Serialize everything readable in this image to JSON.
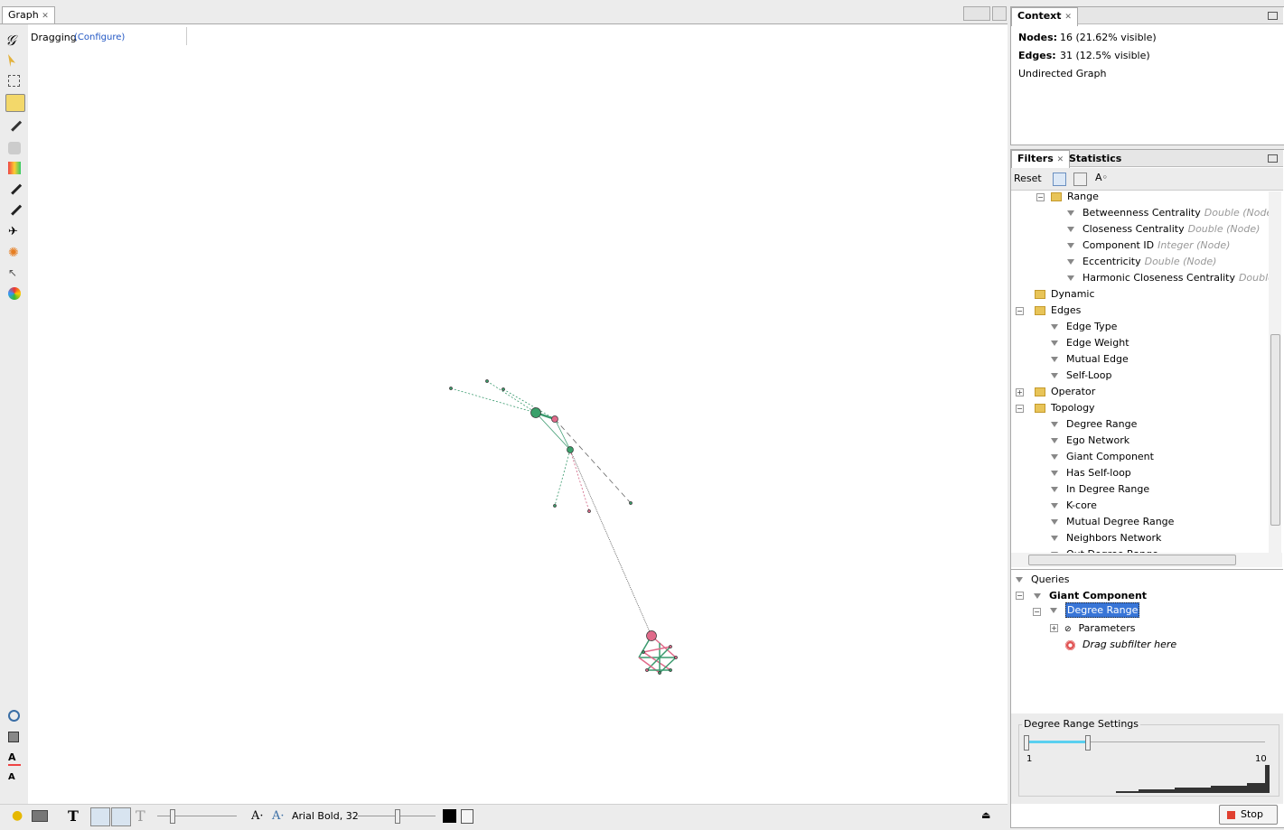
{
  "graph_tab": {
    "title": "Graph"
  },
  "graph_toolbar": {
    "mode": "Dragging",
    "configure": "(Configure)"
  },
  "context": {
    "title": "Context",
    "nodes_label": "Nodes:",
    "nodes_value": "16 (21.62% visible)",
    "edges_label": "Edges:",
    "edges_value": "31 (12.5% visible)",
    "graph_type": "Undirected Graph"
  },
  "filters": {
    "tabs": [
      "Filters",
      "Statistics"
    ],
    "reset": "Reset",
    "range": {
      "label": "Range",
      "items": [
        {
          "label": "Betweenness Centrality",
          "hint": "Double (Node)"
        },
        {
          "label": "Closeness Centrality",
          "hint": "Double (Node)"
        },
        {
          "label": "Component ID",
          "hint": "Integer (Node)"
        },
        {
          "label": "Eccentricity",
          "hint": "Double (Node)"
        },
        {
          "label": "Harmonic Closeness Centrality",
          "hint": "Double (Node)"
        }
      ]
    },
    "folders": [
      {
        "label": "Dynamic"
      },
      {
        "label": "Edges",
        "items": [
          {
            "label": "Edge Type"
          },
          {
            "label": "Edge Weight"
          },
          {
            "label": "Mutual Edge"
          },
          {
            "label": "Self-Loop"
          }
        ]
      },
      {
        "label": "Operator"
      },
      {
        "label": "Topology",
        "items": [
          {
            "label": "Degree Range"
          },
          {
            "label": "Ego Network"
          },
          {
            "label": "Giant Component"
          },
          {
            "label": "Has Self-loop"
          },
          {
            "label": "In Degree Range"
          },
          {
            "label": "K-core"
          },
          {
            "label": "Mutual Degree Range"
          },
          {
            "label": "Neighbors Network"
          },
          {
            "label": "Out Degree Range"
          }
        ]
      }
    ]
  },
  "queries": {
    "title": "Queries",
    "query": "Giant Component",
    "subfilter": "Degree Range",
    "parameters": "Parameters",
    "drop": "Drag subfilter here"
  },
  "settings": {
    "title": "Degree Range Settings",
    "min": 1,
    "max": 10
  },
  "stop": "Stop",
  "bottom_toolbar": {
    "font": "Arial Bold, 32"
  }
}
